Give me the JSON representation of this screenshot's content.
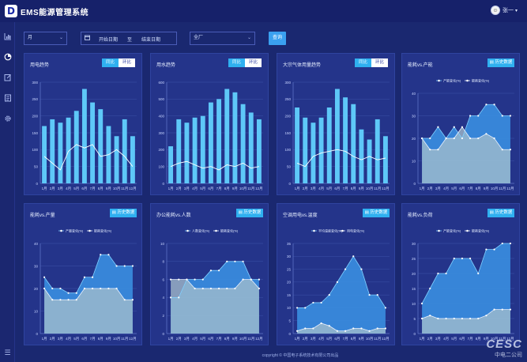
{
  "app": {
    "title": "EMS能源管理系统",
    "username": "张一",
    "avatar_icon": "user-avatar-icon"
  },
  "sidebar": {
    "icons": [
      "bar-chart-icon",
      "pie-chart-icon",
      "edit-icon",
      "report-icon",
      "settings-icon"
    ],
    "collapse_icon": "menu-icon"
  },
  "filters": {
    "period": "月",
    "start_placeholder": "开始日期",
    "separator": "至",
    "end_placeholder": "结束日期",
    "factory": "全厂",
    "query_label": "查询"
  },
  "labels": {
    "yoy": "同比",
    "mom": "环比",
    "history": "历史数据"
  },
  "colors": {
    "bar": "#5ec8f8",
    "line_white": "#ffffff",
    "area_blue": "#3a8ee0",
    "area_grey": "#a8c0cc",
    "accent": "#2fb0f0"
  },
  "panels": [
    {
      "title": "用电趋势",
      "controls": "toggle"
    },
    {
      "title": "用水趋势",
      "controls": "toggle"
    },
    {
      "title": "大宗气体用量趋势",
      "controls": "toggle"
    },
    {
      "title": "能耗vs.产能",
      "controls": "history"
    },
    {
      "title": "能耗vs.产量",
      "controls": "history"
    },
    {
      "title": "办公能耗vs.人数",
      "controls": "history"
    },
    {
      "title": "空调用电vs.温度",
      "controls": "history"
    },
    {
      "title": "能耗vs.负荷",
      "controls": "history"
    }
  ],
  "chart_data": [
    {
      "type": "bar",
      "categories": [
        "1月",
        "2月",
        "3月",
        "4月",
        "5月",
        "6月",
        "7月",
        "8月",
        "9月",
        "10月",
        "11月",
        "12月"
      ],
      "ylim": [
        0,
        300
      ],
      "yticks": [
        0,
        50,
        100,
        150,
        200,
        250,
        300
      ],
      "series": [
        {
          "type": "bar",
          "values": [
            170,
            190,
            180,
            195,
            215,
            280,
            240,
            220,
            170,
            140,
            190,
            140
          ]
        },
        {
          "type": "line",
          "values": [
            80,
            60,
            40,
            95,
            115,
            105,
            115,
            80,
            85,
            100,
            80,
            50
          ]
        }
      ]
    },
    {
      "type": "bar",
      "categories": [
        "1月",
        "2月",
        "3月",
        "4月",
        "5月",
        "6月",
        "7月",
        "8月",
        "9月",
        "10月",
        "11月",
        "12月"
      ],
      "ylim": [
        0,
        600
      ],
      "yticks": [
        0,
        100,
        200,
        300,
        400,
        500,
        600
      ],
      "series": [
        {
          "type": "bar",
          "values": [
            220,
            380,
            360,
            390,
            400,
            480,
            500,
            560,
            540,
            470,
            420,
            380
          ]
        },
        {
          "type": "line",
          "values": [
            100,
            120,
            130,
            110,
            90,
            100,
            80,
            110,
            100,
            120,
            90,
            100
          ]
        }
      ]
    },
    {
      "type": "bar",
      "categories": [
        "1月",
        "2月",
        "3月",
        "4月",
        "5月",
        "6月",
        "7月",
        "8月",
        "9月",
        "10月",
        "11月",
        "12月"
      ],
      "ylim": [
        0,
        300
      ],
      "yticks": [
        0,
        50,
        100,
        150,
        200,
        250,
        300
      ],
      "series": [
        {
          "type": "bar",
          "values": [
            225,
            195,
            180,
            195,
            225,
            280,
            255,
            235,
            160,
            130,
            190,
            140
          ]
        },
        {
          "type": "line",
          "values": [
            60,
            50,
            80,
            90,
            95,
            100,
            95,
            80,
            70,
            80,
            70,
            75
          ]
        }
      ]
    },
    {
      "type": "area",
      "categories": [
        "1月",
        "2月",
        "3月",
        "4月",
        "5月",
        "6月",
        "7月",
        "8月",
        "9月",
        "10月",
        "11月",
        "12月"
      ],
      "ylim": [
        0,
        40
      ],
      "yticks": [
        0,
        10,
        20,
        30,
        40
      ],
      "series": [
        {
          "name": "产能变化(%)",
          "values": [
            20,
            20,
            25,
            20,
            25,
            20,
            30,
            30,
            35,
            35,
            30,
            30
          ]
        },
        {
          "name": "能耗变化(%)",
          "values": [
            20,
            15,
            15,
            20,
            20,
            25,
            20,
            20,
            22,
            20,
            15,
            15
          ]
        }
      ]
    },
    {
      "type": "area",
      "categories": [
        "1月",
        "2月",
        "3月",
        "4月",
        "5月",
        "6月",
        "7月",
        "8月",
        "9月",
        "10月",
        "11月",
        "12月"
      ],
      "ylim": [
        0,
        40
      ],
      "yticks": [
        0,
        10,
        20,
        30,
        40
      ],
      "series": [
        {
          "name": "产量变化(%)",
          "values": [
            25,
            20,
            20,
            18,
            18,
            25,
            25,
            35,
            35,
            30,
            30,
            30
          ]
        },
        {
          "name": "能耗变化(%)",
          "values": [
            20,
            15,
            15,
            15,
            15,
            20,
            20,
            20,
            20,
            20,
            15,
            15
          ]
        }
      ]
    },
    {
      "type": "area",
      "categories": [
        "1月",
        "2月",
        "3月",
        "4月",
        "5月",
        "6月",
        "7月",
        "8月",
        "9月",
        "10月",
        "11月",
        "12月"
      ],
      "ylim": [
        0,
        10
      ],
      "yticks": [
        0,
        2,
        4,
        6,
        8,
        10
      ],
      "series": [
        {
          "name": "人数变化(%)",
          "values": [
            4,
            4,
            6,
            6,
            6,
            7,
            7,
            8,
            8,
            8,
            6,
            6
          ]
        },
        {
          "name": "能耗变化(%)",
          "values": [
            6,
            6,
            6,
            5,
            5,
            5,
            5,
            5,
            5,
            6,
            6,
            5
          ]
        }
      ]
    },
    {
      "type": "area",
      "categories": [
        "1月",
        "2月",
        "3月",
        "4月",
        "5月",
        "6月",
        "7月",
        "8月",
        "9月",
        "10月",
        "11月",
        "12月"
      ],
      "ylim": [
        0,
        35
      ],
      "yticks": [
        0,
        5,
        10,
        15,
        20,
        25,
        30,
        35
      ],
      "series": [
        {
          "name": "平均温度变化(%)",
          "values": [
            10,
            10,
            12,
            12,
            15,
            20,
            25,
            30,
            25,
            15,
            15,
            10
          ]
        },
        {
          "name": "用电变化(%)",
          "values": [
            1,
            2,
            2,
            4,
            3,
            1,
            1,
            2,
            2,
            1,
            2,
            2
          ]
        }
      ]
    },
    {
      "type": "area",
      "categories": [
        "1月",
        "2月",
        "3月",
        "4月",
        "5月",
        "6月",
        "7月",
        "8月",
        "9月",
        "10月",
        "11月",
        "12月"
      ],
      "ylim": [
        0,
        30
      ],
      "yticks": [
        0,
        5,
        10,
        15,
        20,
        25,
        30
      ],
      "series": [
        {
          "name": "产能变化(%)",
          "values": [
            10,
            15,
            20,
            20,
            25,
            25,
            25,
            20,
            28,
            28,
            30,
            30
          ]
        },
        {
          "name": "能耗变化(%)",
          "values": [
            5,
            6,
            5,
            5,
            5,
            5,
            5,
            5,
            6,
            8,
            8,
            8
          ]
        }
      ]
    }
  ],
  "footer": "copyright © 中国电子系统技术有限公司出品",
  "watermark": {
    "text": "CESC",
    "sub": "中电二公司"
  }
}
